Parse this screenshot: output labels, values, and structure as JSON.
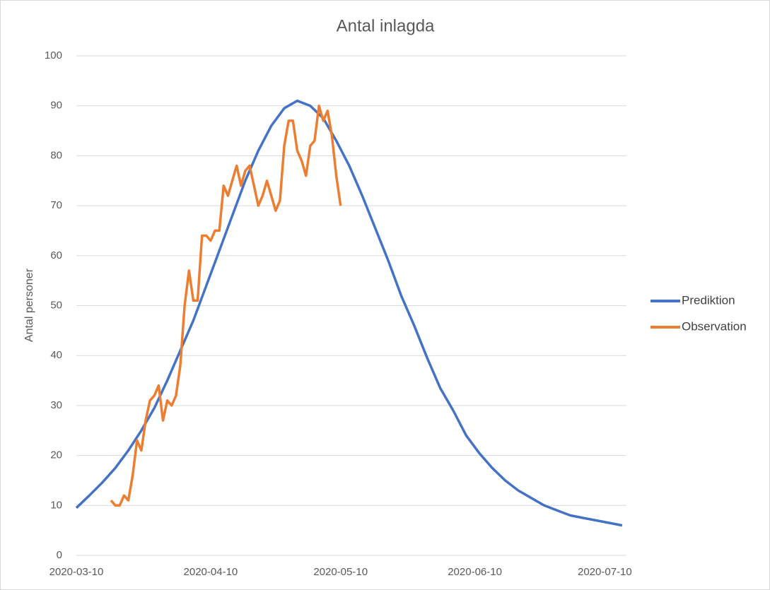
{
  "chart_data": {
    "type": "line",
    "title": "Antal inlagda",
    "y_label": "Antal personer",
    "xlim": [
      "2020-03-10",
      "2020-07-15"
    ],
    "xticks": [
      "2020-03-10",
      "2020-04-10",
      "2020-05-10",
      "2020-06-10",
      "2020-07-10"
    ],
    "ylim": [
      0,
      100
    ],
    "yticks": [
      0,
      10,
      20,
      30,
      40,
      50,
      60,
      70,
      80,
      90,
      100
    ],
    "grid": true,
    "legend": "right",
    "series": [
      {
        "name": "Prediktion",
        "color": "#4472c4",
        "x": [
          "2020-03-10",
          "2020-03-13",
          "2020-03-16",
          "2020-03-19",
          "2020-03-22",
          "2020-03-25",
          "2020-03-28",
          "2020-03-31",
          "2020-04-03",
          "2020-04-06",
          "2020-04-09",
          "2020-04-12",
          "2020-04-15",
          "2020-04-18",
          "2020-04-21",
          "2020-04-24",
          "2020-04-27",
          "2020-04-30",
          "2020-05-03",
          "2020-05-06",
          "2020-05-09",
          "2020-05-12",
          "2020-05-15",
          "2020-05-18",
          "2020-05-21",
          "2020-05-24",
          "2020-05-27",
          "2020-05-30",
          "2020-06-02",
          "2020-06-05",
          "2020-06-08",
          "2020-06-11",
          "2020-06-14",
          "2020-06-17",
          "2020-06-20",
          "2020-06-23",
          "2020-06-26",
          "2020-06-29",
          "2020-07-02",
          "2020-07-05",
          "2020-07-08",
          "2020-07-11",
          "2020-07-14"
        ],
        "values": [
          9.5,
          12,
          14.6,
          17.5,
          21,
          25,
          29.5,
          35,
          41,
          47,
          54,
          61,
          68,
          75,
          81,
          86,
          89.5,
          91,
          90,
          87.5,
          83,
          78,
          72,
          65.5,
          59,
          52,
          46,
          39.5,
          33.5,
          29,
          24,
          20.5,
          17.5,
          15,
          13,
          11.5,
          10,
          9,
          8,
          7.5,
          7,
          6.5,
          6
        ]
      },
      {
        "name": "Observation",
        "color": "#ed7d31",
        "x": [
          "2020-03-18",
          "2020-03-19",
          "2020-03-20",
          "2020-03-21",
          "2020-03-22",
          "2020-03-23",
          "2020-03-24",
          "2020-03-25",
          "2020-03-26",
          "2020-03-27",
          "2020-03-28",
          "2020-03-29",
          "2020-03-30",
          "2020-03-31",
          "2020-04-01",
          "2020-04-02",
          "2020-04-03",
          "2020-04-04",
          "2020-04-05",
          "2020-04-06",
          "2020-04-07",
          "2020-04-08",
          "2020-04-09",
          "2020-04-10",
          "2020-04-11",
          "2020-04-12",
          "2020-04-13",
          "2020-04-14",
          "2020-04-15",
          "2020-04-16",
          "2020-04-17",
          "2020-04-18",
          "2020-04-19",
          "2020-04-20",
          "2020-04-21",
          "2020-04-22",
          "2020-04-23",
          "2020-04-24",
          "2020-04-25",
          "2020-04-26",
          "2020-04-27",
          "2020-04-28",
          "2020-04-29",
          "2020-04-30",
          "2020-05-01",
          "2020-05-02",
          "2020-05-03",
          "2020-05-04",
          "2020-05-05",
          "2020-05-06",
          "2020-05-07",
          "2020-05-08",
          "2020-05-09",
          "2020-05-10"
        ],
        "values": [
          11,
          10,
          10,
          12,
          11,
          16,
          23,
          21,
          27,
          31,
          32,
          34,
          27,
          31,
          30,
          32,
          38,
          50,
          57,
          51,
          51,
          64,
          64,
          63,
          65,
          65,
          74,
          72,
          75,
          78,
          74,
          77,
          78,
          74,
          70,
          72,
          75,
          72,
          69,
          71,
          82,
          87,
          87,
          81,
          79,
          76,
          82,
          83,
          90,
          87,
          89,
          84,
          76,
          70
        ]
      }
    ]
  }
}
